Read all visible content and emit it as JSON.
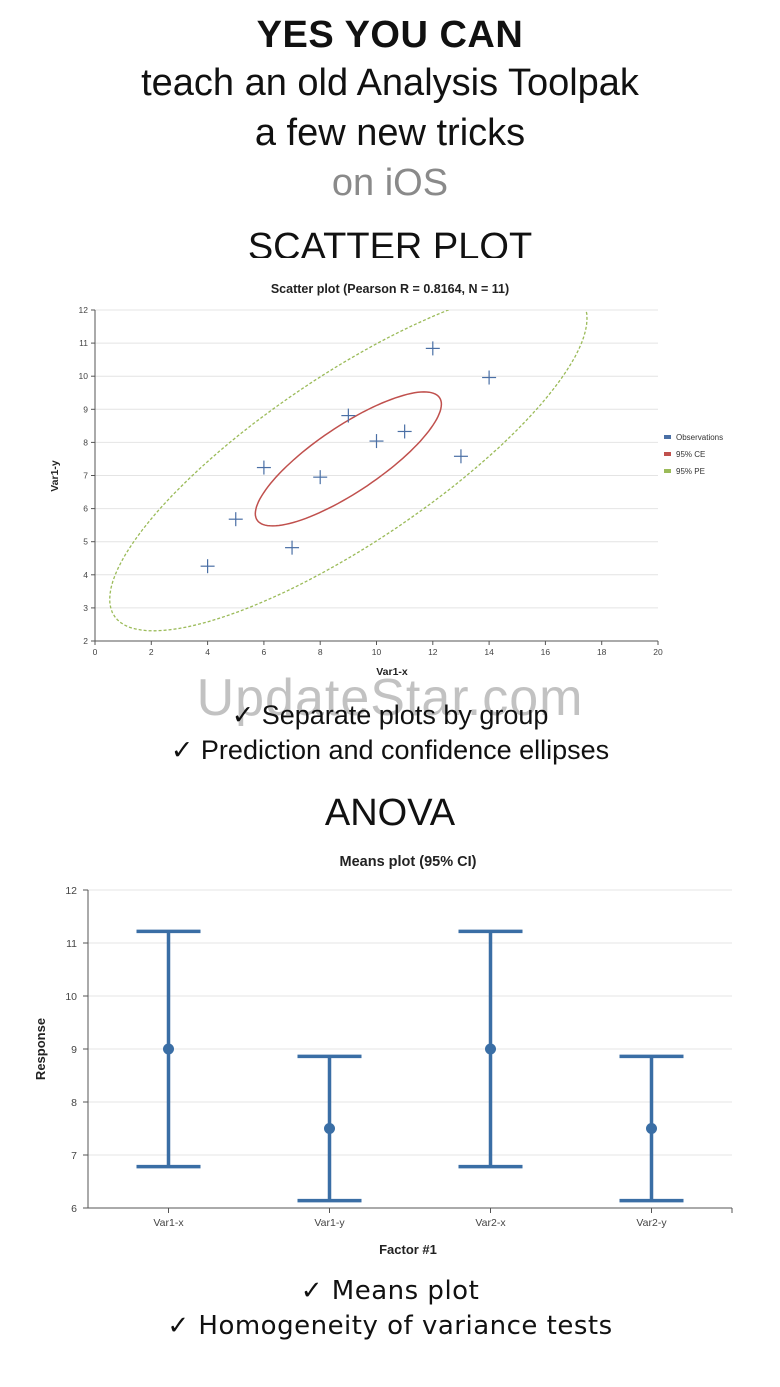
{
  "header": {
    "line1": "YES YOU CAN",
    "line2": "teach an old Analysis Toolpak",
    "line3": "a few new tricks",
    "line4": "on iOS"
  },
  "sections": {
    "scatter_title": "SCATTER PLOT",
    "anova_title": "ANOVA"
  },
  "features": {
    "scatter": [
      "✓ Separate plots by group",
      "✓ Prediction and confidence ellipses"
    ],
    "anova": [
      "✓ Means plot",
      "✓ Homogeneity of variance tests"
    ]
  },
  "watermark": "UpdateStar.com",
  "colors": {
    "observations": "#4a6fa5",
    "ce": "#c0504d",
    "pe": "#9bbb59",
    "means": "#3a6ea5"
  },
  "chart_data": [
    {
      "type": "scatter",
      "title": "Scatter plot (Pearson R = 0.8164, N = 11)",
      "xlabel": "Var1-x",
      "ylabel": "Var1-y",
      "xlim": [
        0,
        20
      ],
      "ylim": [
        2,
        12
      ],
      "xticks": [
        0,
        2,
        4,
        6,
        8,
        10,
        12,
        14,
        16,
        18,
        20
      ],
      "yticks": [
        2,
        3,
        4,
        5,
        6,
        7,
        8,
        9,
        10,
        11,
        12
      ],
      "grid": "horizontal",
      "legend_position": "right",
      "series": [
        {
          "name": "Observations",
          "x": [
            10,
            8,
            13,
            9,
            11,
            14,
            6,
            4,
            12,
            7,
            5
          ],
          "y": [
            8.04,
            6.95,
            7.58,
            8.81,
            8.33,
            9.96,
            7.24,
            4.26,
            10.84,
            4.82,
            5.68
          ]
        },
        {
          "name": "95% CE"
        },
        {
          "name": "95% PE"
        }
      ]
    },
    {
      "type": "errorbar",
      "title": "Means plot (95% CI)",
      "xlabel": "Factor #1",
      "ylabel": "Response",
      "ylim": [
        6,
        12
      ],
      "yticks": [
        6,
        7,
        8,
        9,
        10,
        11,
        12
      ],
      "grid": "horizontal",
      "categories": [
        "Var1-x",
        "Var1-y",
        "Var2-x",
        "Var2-y"
      ],
      "means": [
        9.0,
        7.5,
        9.0,
        7.5
      ],
      "lower": [
        6.78,
        6.14,
        6.78,
        6.14
      ],
      "upper": [
        11.22,
        8.86,
        11.22,
        8.86
      ]
    }
  ]
}
